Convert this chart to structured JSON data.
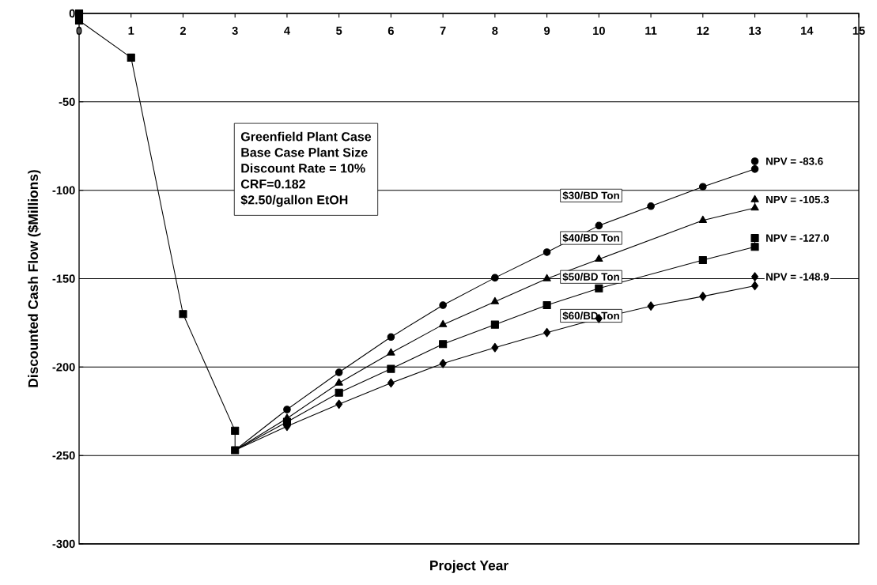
{
  "chart_data": {
    "type": "line",
    "xlabel": "Project Year",
    "ylabel": "Discounted Cash Flow ($Millions)",
    "xlim": [
      0,
      15
    ],
    "xticks": [
      0,
      1,
      2,
      3,
      4,
      5,
      6,
      7,
      8,
      9,
      10,
      11,
      12,
      13,
      14,
      15
    ],
    "ylim": [
      -300,
      0
    ],
    "yticks": [
      -300,
      -250,
      -200,
      -150,
      -100,
      -50,
      0
    ],
    "grid": "y",
    "line_style": "solid",
    "series": [
      {
        "color": "#000000",
        "marker": "square",
        "x": [
          0,
          0,
          1,
          2,
          3,
          3
        ],
        "values": [
          0,
          -4,
          -25,
          -170,
          -236,
          -247
        ]
      },
      {
        "name": "$30/BD Ton",
        "color": "#000000",
        "marker": "circle",
        "x": [
          3,
          4,
          5,
          6,
          7,
          8,
          9,
          10,
          11,
          12,
          13,
          13
        ],
        "values": [
          -247,
          -224,
          -203,
          -183,
          -165,
          -149.5,
          -135,
          -120,
          -109,
          -98,
          -88,
          -83.6
        ]
      },
      {
        "name": "$40/BD Ton",
        "color": "#000000",
        "marker": "triangle",
        "x": [
          3,
          4,
          5,
          6,
          7,
          8,
          9,
          10,
          11,
          12,
          13,
          13
        ],
        "values": [
          -247,
          -229,
          -209,
          -192,
          -176,
          -163,
          -150,
          -139,
          null,
          -117,
          -110,
          -105.3
        ]
      },
      {
        "name": "$50/BD Ton",
        "color": "#000000",
        "marker": "square",
        "x": [
          3,
          4,
          5,
          6,
          7,
          8,
          9,
          10,
          11,
          12,
          13,
          13
        ],
        "values": [
          -247,
          -231,
          -214.5,
          -201,
          -187,
          -176,
          -165,
          -155.5,
          null,
          -139.5,
          -132,
          -127.0
        ]
      },
      {
        "name": "$60/BD Ton",
        "color": "#000000",
        "marker": "diamond",
        "x": [
          3,
          4,
          5,
          6,
          7,
          8,
          9,
          10,
          11,
          12,
          13,
          13
        ],
        "values": [
          -247,
          -233.5,
          -221,
          -209,
          -198,
          -189,
          -180.5,
          -172.5,
          -165.5,
          -160,
          -154,
          -148.9
        ]
      }
    ],
    "annotations": [
      "Greenfield Plant Case",
      "Base Case Plant Size",
      "Discount Rate = 10%",
      "CRF=0.182",
      "$2.50/gallon EtOH",
      "NPV = -83.6",
      "NPV = -105.3",
      "NPV = -127.0",
      "NPV = -148.9"
    ]
  }
}
